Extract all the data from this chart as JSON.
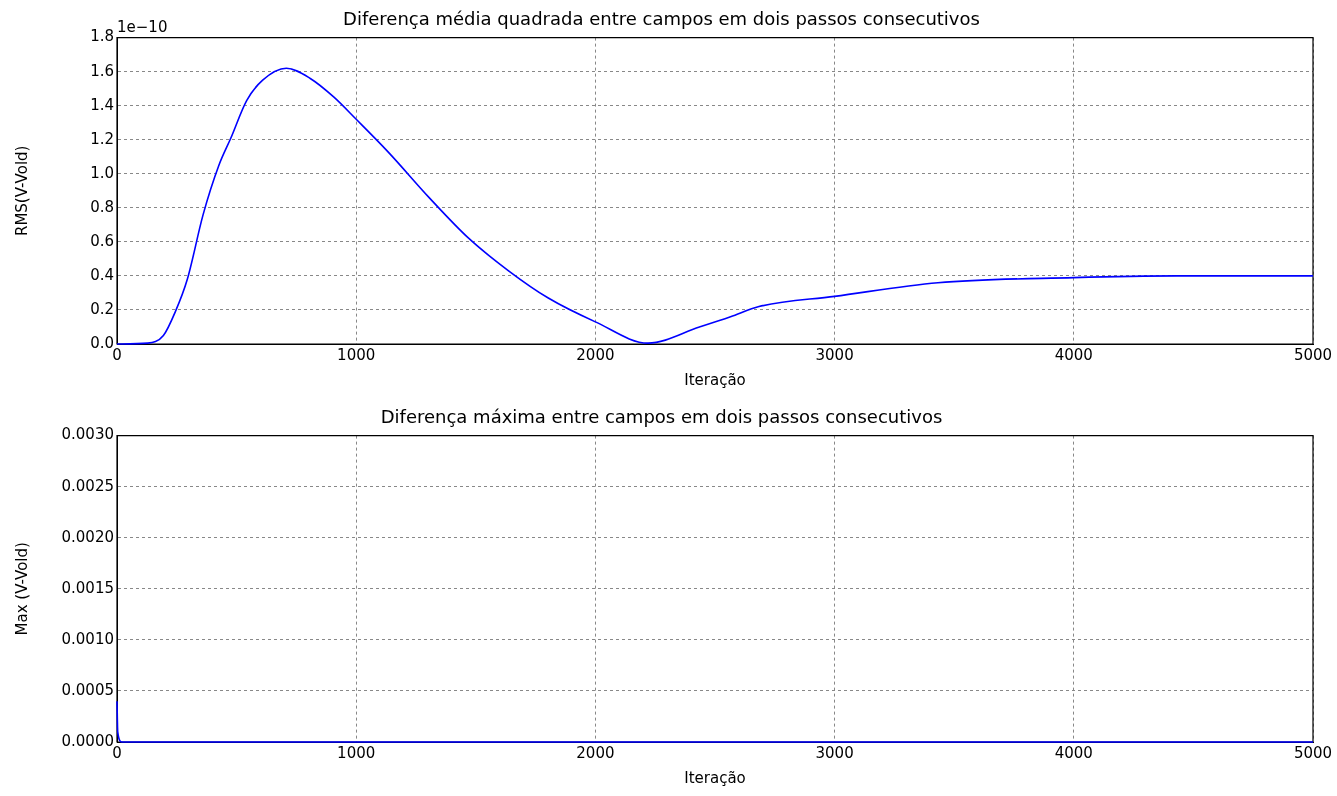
{
  "chart_data": [
    {
      "type": "line",
      "title": "Diferença média quadrada entre campos em dois passos consecutivos",
      "xlabel": "Iteração",
      "ylabel": "RMS(V-Vold)",
      "annotations": [
        "1e−10"
      ],
      "series": [
        {
          "color": "#0000ff",
          "x": [
            0,
            128,
            194,
            244,
            294,
            360,
            426,
            476,
            542,
            609,
            708,
            808,
            907,
            1000,
            1139,
            1305,
            1471,
            1637,
            1803,
            2000,
            2220,
            2435,
            2565,
            2684,
            3000,
            3432,
            4000,
            4429,
            5000
          ],
          "values": [
            0,
            0.005,
            0.05,
            0.19,
            0.38,
            0.76,
            1.05,
            1.21,
            1.43,
            1.55,
            1.62,
            1.56,
            1.45,
            1.32,
            1.12,
            0.86,
            0.62,
            0.43,
            0.27,
            0.13,
            0.005,
            0.1,
            0.16,
            0.22,
            0.28,
            0.36,
            0.39,
            0.4,
            0.4
          ]
        }
      ],
      "xlim": [
        0,
        5000
      ],
      "xticks": [
        0,
        1000,
        2000,
        3000,
        4000,
        5000
      ],
      "ylim": [
        0,
        1.8
      ],
      "yticks": [
        {
          "value": 0,
          "label": "0.0"
        },
        {
          "value": 0.2,
          "label": "0.2"
        },
        {
          "value": 0.4,
          "label": "0.4"
        },
        {
          "value": 0.6,
          "label": "0.6"
        },
        {
          "value": 0.8,
          "label": "0.8"
        },
        {
          "value": 1,
          "label": "1.0"
        },
        {
          "value": 1.2,
          "label": "1.2"
        },
        {
          "value": 1.4,
          "label": "1.4"
        },
        {
          "value": 1.6,
          "label": "1.6"
        },
        {
          "value": 1.8,
          "label": "1.8"
        }
      ],
      "grid": true
    },
    {
      "type": "line",
      "title": "Diferença máxima entre campos em dois passos consecutivos",
      "xlabel": "Iteração",
      "ylabel": "Max (V-Vold)",
      "series": [
        {
          "color": "#0000ff",
          "x": [
            0,
            3,
            20,
            100,
            5000
          ],
          "values": [
            0.0004,
            0.0001,
            0,
            0,
            0
          ]
        }
      ],
      "xlim": [
        0,
        5000
      ],
      "xticks": [
        0,
        1000,
        2000,
        3000,
        4000,
        5000
      ],
      "ylim": [
        0,
        0.003
      ],
      "yticks": [
        {
          "value": 0,
          "label": "0.0000"
        },
        {
          "value": 0.0005,
          "label": "0.0005"
        },
        {
          "value": 0.001,
          "label": "0.0010"
        },
        {
          "value": 0.0015,
          "label": "0.0015"
        },
        {
          "value": 0.002,
          "label": "0.0020"
        },
        {
          "value": 0.0025,
          "label": "0.0025"
        },
        {
          "value": 0.003,
          "label": "0.0030"
        }
      ],
      "grid": true
    }
  ]
}
